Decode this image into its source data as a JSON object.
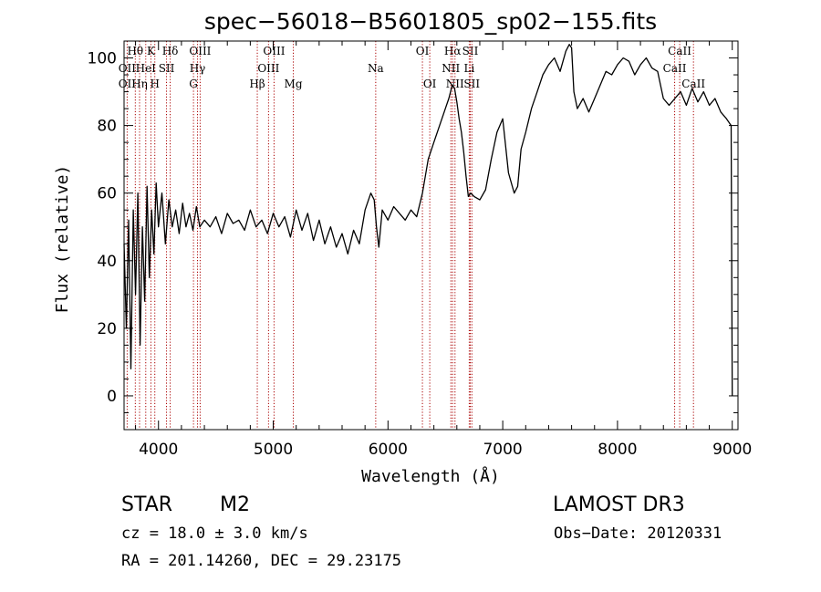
{
  "chart_data": {
    "type": "line",
    "title": "spec−56018−B5601805_sp02−155.fits",
    "xlabel": "Wavelength (Å)",
    "ylabel": "Flux (relative)",
    "xlim": [
      3700,
      9050
    ],
    "ylim": [
      -10,
      105
    ],
    "x_ticks": [
      4000,
      5000,
      6000,
      7000,
      8000,
      9000
    ],
    "y_ticks": [
      0,
      20,
      40,
      60,
      80,
      100
    ],
    "grid": false,
    "series": [
      {
        "x": [
          3700,
          3720,
          3740,
          3760,
          3780,
          3800,
          3820,
          3840,
          3860,
          3880,
          3900,
          3920,
          3940,
          3960,
          3980,
          4000,
          4030,
          4060,
          4090,
          4120,
          4150,
          4180,
          4210,
          4240,
          4270,
          4300,
          4330,
          4360,
          4400,
          4450,
          4500,
          4550,
          4600,
          4650,
          4700,
          4750,
          4800,
          4850,
          4900,
          4950,
          5000,
          5050,
          5100,
          5150,
          5200,
          5250,
          5300,
          5350,
          5400,
          5450,
          5500,
          5550,
          5600,
          5650,
          5700,
          5750,
          5800,
          5850,
          5880,
          5900,
          5920,
          5950,
          6000,
          6050,
          6100,
          6150,
          6200,
          6250,
          6300,
          6350,
          6400,
          6450,
          6500,
          6530,
          6560,
          6580,
          6600,
          6620,
          6640,
          6660,
          6680,
          6700,
          6720,
          6750,
          6800,
          6850,
          6900,
          6950,
          7000,
          7050,
          7100,
          7130,
          7160,
          7200,
          7250,
          7300,
          7350,
          7400,
          7450,
          7500,
          7550,
          7580,
          7600,
          7620,
          7650,
          7700,
          7750,
          7800,
          7850,
          7900,
          7950,
          8000,
          8050,
          8100,
          8150,
          8200,
          8250,
          8300,
          8350,
          8400,
          8450,
          8500,
          8550,
          8600,
          8650,
          8700,
          8750,
          8800,
          8850,
          8900,
          8950,
          8990,
          9000
        ],
        "values": [
          45,
          20,
          52,
          8,
          55,
          30,
          60,
          15,
          50,
          28,
          62,
          35,
          55,
          42,
          63,
          50,
          60,
          45,
          58,
          50,
          55,
          48,
          57,
          50,
          54,
          49,
          56,
          50,
          52,
          50,
          53,
          48,
          54,
          51,
          52,
          49,
          55,
          50,
          52,
          48,
          54,
          50,
          53,
          47,
          55,
          49,
          54,
          46,
          52,
          45,
          50,
          44,
          48,
          42,
          49,
          45,
          55,
          60,
          58,
          50,
          44,
          55,
          52,
          56,
          54,
          52,
          55,
          53,
          60,
          70,
          75,
          80,
          85,
          88,
          92,
          91,
          87,
          82,
          78,
          72,
          65,
          59,
          60,
          59,
          58,
          61,
          70,
          78,
          82,
          66,
          60,
          62,
          73,
          78,
          85,
          90,
          95,
          98,
          100,
          96,
          102,
          104,
          103,
          90,
          85,
          88,
          84,
          88,
          92,
          96,
          95,
          98,
          100,
          99,
          95,
          98,
          100,
          97,
          96,
          88,
          86,
          88,
          90,
          86,
          91,
          87,
          90,
          86,
          88,
          84,
          82,
          80,
          0
        ]
      }
    ],
    "line_markers": [
      {
        "label": "Hθ",
        "x": 3798,
        "row": 0
      },
      {
        "label": "OII",
        "x": 3727,
        "row": 1
      },
      {
        "label": "OII",
        "x": 3727,
        "row": 2
      },
      {
        "label": "K",
        "x": 3934,
        "row": 0
      },
      {
        "label": "HeI",
        "x": 3889,
        "row": 1
      },
      {
        "label": "Hη",
        "x": 3835,
        "row": 2
      },
      {
        "label": "Hδ",
        "x": 4102,
        "row": 0
      },
      {
        "label": "SII",
        "x": 4070,
        "row": 1
      },
      {
        "label": "H",
        "x": 3968,
        "row": 2
      },
      {
        "label": "OIII",
        "x": 4363,
        "row": 0
      },
      {
        "label": "Hγ",
        "x": 4340,
        "row": 1
      },
      {
        "label": "G",
        "x": 4305,
        "row": 2
      },
      {
        "label": "OIII",
        "x": 5007,
        "row": 0
      },
      {
        "label": "OIII",
        "x": 4959,
        "row": 1
      },
      {
        "label": "Hβ",
        "x": 4861,
        "row": 2
      },
      {
        "label": "Mg",
        "x": 5175,
        "row": 2
      },
      {
        "label": "Na",
        "x": 5893,
        "row": 1
      },
      {
        "label": "OI",
        "x": 6300,
        "row": 0
      },
      {
        "label": "OI",
        "x": 6364,
        "row": 2
      },
      {
        "label": "Hα",
        "x": 6563,
        "row": 0
      },
      {
        "label": "SII",
        "x": 6717,
        "row": 0
      },
      {
        "label": "NII",
        "x": 6548,
        "row": 1
      },
      {
        "label": "Li",
        "x": 6708,
        "row": 1
      },
      {
        "label": "NII",
        "x": 6584,
        "row": 2
      },
      {
        "label": "SII",
        "x": 6731,
        "row": 2
      },
      {
        "label": "CaII",
        "x": 8542,
        "row": 0
      },
      {
        "label": "CaII",
        "x": 8498,
        "row": 1
      },
      {
        "label": "CaII",
        "x": 8662,
        "row": 2
      }
    ]
  },
  "footer": {
    "class_label": "STAR",
    "subclass": "M2",
    "survey": "LAMOST DR3",
    "cz": "cz = 18.0 ± 3.0 km/s",
    "obs_date": "Obs−Date: 20120331",
    "coords": "RA = 201.14260, DEC =  29.23175"
  },
  "colors": {
    "spectrum": "#000000",
    "marker_line": "#aa0000",
    "background": "#ffffff"
  }
}
